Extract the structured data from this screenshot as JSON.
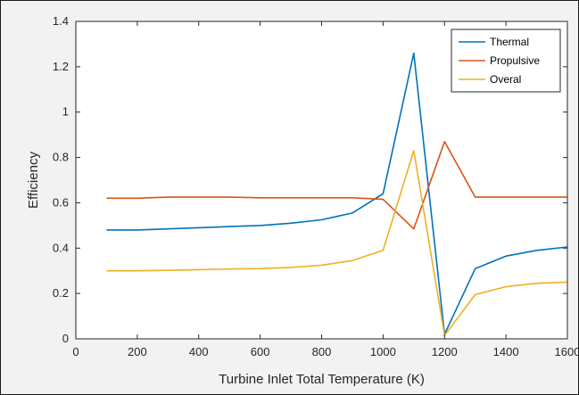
{
  "chart_data": {
    "type": "line",
    "title": "",
    "xlabel": "Turbine Inlet Total Temperature (K)",
    "ylabel": "Efficiency",
    "xlim": [
      0,
      1600
    ],
    "ylim": [
      0,
      1.4
    ],
    "xticks": [
      0,
      200,
      400,
      600,
      800,
      1000,
      1200,
      1400,
      1600
    ],
    "yticks": [
      0,
      0.2,
      0.4,
      0.6,
      0.8,
      1,
      1.2,
      1.4
    ],
    "grid": false,
    "legend_position": "top-right",
    "x": [
      100,
      200,
      300,
      400,
      500,
      600,
      700,
      800,
      900,
      1000,
      1100,
      1200,
      1300,
      1400,
      1500,
      1600
    ],
    "series": [
      {
        "name": "Thermal",
        "color": "#0072BD",
        "values": [
          0.48,
          0.48,
          0.485,
          0.49,
          0.495,
          0.5,
          0.51,
          0.525,
          0.555,
          0.64,
          1.26,
          0.02,
          0.31,
          0.365,
          0.39,
          0.405
        ]
      },
      {
        "name": "Propulsive",
        "color": "#D95319",
        "values": [
          0.62,
          0.62,
          0.625,
          0.625,
          0.625,
          0.622,
          0.622,
          0.622,
          0.622,
          0.615,
          0.485,
          0.87,
          0.625,
          0.625,
          0.625,
          0.625
        ]
      },
      {
        "name": "Overal",
        "color": "#EDB120",
        "values": [
          0.3,
          0.3,
          0.302,
          0.305,
          0.308,
          0.31,
          0.315,
          0.325,
          0.345,
          0.39,
          0.83,
          0.015,
          0.195,
          0.23,
          0.245,
          0.25
        ]
      }
    ]
  }
}
